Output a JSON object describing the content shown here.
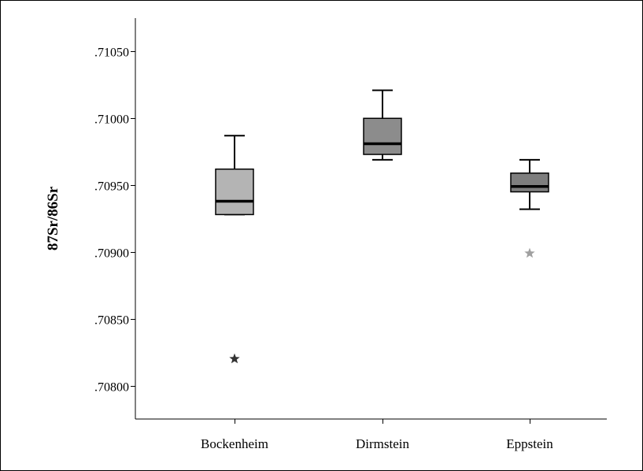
{
  "chart_data": {
    "type": "boxplot",
    "title": "",
    "xlabel": "",
    "ylabel": "87Sr/86Sr",
    "ylim": [
      0.70775,
      0.71075
    ],
    "y_ticks": [
      {
        "value": 0.708,
        "label": ".70800"
      },
      {
        "value": 0.7085,
        "label": ".70850"
      },
      {
        "value": 0.709,
        "label": ".70900"
      },
      {
        "value": 0.7095,
        "label": ".70950"
      },
      {
        "value": 0.71,
        "label": ".71000"
      },
      {
        "value": 0.7105,
        "label": ".71050"
      }
    ],
    "grid": false,
    "categories": [
      "Bockenheim",
      "Dirmstein",
      "Eppstein"
    ],
    "boxes": [
      {
        "category": "Bockenheim",
        "whisker_low": 0.70928,
        "q1": 0.70928,
        "median": 0.70938,
        "q3": 0.70962,
        "whisker_high": 0.70987,
        "color": "#b4b4b4",
        "outliers": [
          {
            "value": 0.7082,
            "marker": "star",
            "color": "#333333"
          }
        ]
      },
      {
        "category": "Dirmstein",
        "whisker_low": 0.70969,
        "q1": 0.70973,
        "median": 0.70981,
        "q3": 0.71,
        "whisker_high": 0.71021,
        "color": "#8c8c8c",
        "outliers": []
      },
      {
        "category": "Eppstein",
        "whisker_low": 0.70932,
        "q1": 0.70945,
        "median": 0.70949,
        "q3": 0.70959,
        "whisker_high": 0.70969,
        "color": "#7e7e7e",
        "outliers": [
          {
            "value": 0.70899,
            "marker": "star",
            "color": "#a0a0a0"
          }
        ]
      }
    ]
  }
}
